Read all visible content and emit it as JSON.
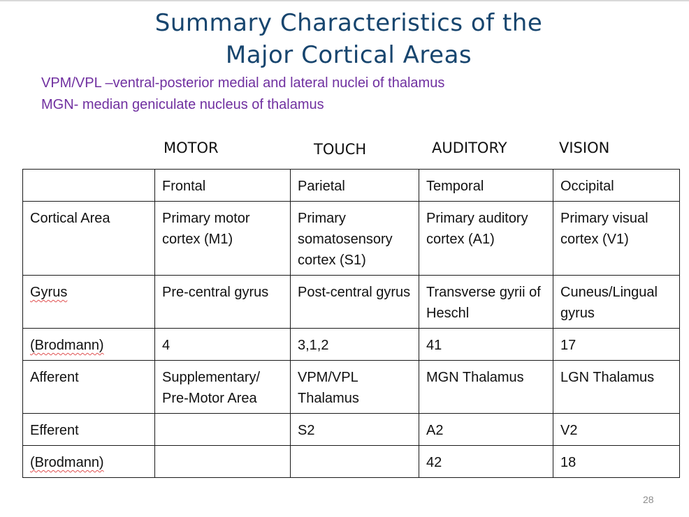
{
  "slide": {
    "title_line1": "Summary Characteristics of the",
    "title_line2": "Major Cortical Areas",
    "note_line1": "VPM/VPL –ventral-posterior medial and lateral nuclei of thalamus",
    "note_line2": "MGN- median geniculate nucleus of thalamus",
    "page_number": "28",
    "title_color": "#17456e",
    "note_color": "#7030a0"
  },
  "columns": [
    "MOTOR",
    "TOUCH",
    "AUDITORY",
    "VISION"
  ],
  "table": {
    "rows": [
      [
        "",
        "Frontal",
        "Parietal",
        "Temporal",
        "Occipital"
      ],
      [
        "Cortical Area",
        "Primary motor cortex (M1)",
        "Primary somatosensory cortex (S1)",
        "Primary auditory cortex (A1)",
        "Primary visual cortex (V1)"
      ],
      [
        "Gyrus",
        "Pre-central gyrus",
        "Post-central gyrus",
        "Transverse gyrii of Heschl",
        "Cuneus/Lingual gyrus"
      ],
      [
        "(Brodmann)",
        "4",
        "3,1,2",
        "41",
        "17"
      ],
      [
        "Afferent",
        "Supplementary/ Pre-Motor Area",
        "VPM/VPL Thalamus",
        "MGN Thalamus",
        "LGN Thalamus"
      ],
      [
        "Efferent",
        "",
        "S2",
        "A2",
        "V2"
      ],
      [
        "(Brodmann)",
        "",
        "",
        "42",
        "18"
      ]
    ]
  }
}
